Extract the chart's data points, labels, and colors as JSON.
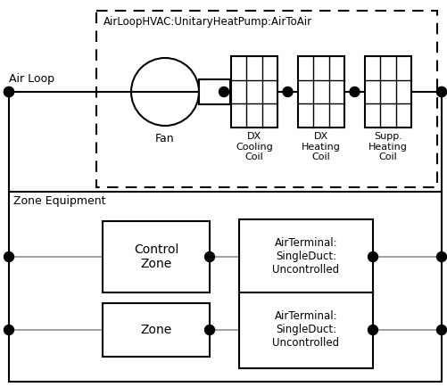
{
  "title": "AirLoopHVAC:UnitaryHeatPump:AirToAir",
  "bg_color": "#ffffff",
  "fig_width": 5.02,
  "fig_height": 4.34,
  "dpi": 100,
  "zone_equipment_label": "Zone Equipment",
  "air_loop_label": "Air Loop",
  "fan_label": "Fan",
  "coil1_label": "DX\nCooling\nCoil",
  "coil2_label": "DX\nHeating\nCoil",
  "coil3_label": "Supp.\nHeating\nCoil",
  "control_zone_label": "Control\nZone",
  "zone_label": "Zone",
  "terminal1_label": "AirTerminal:\nSingleDuct:\nUncontrolled",
  "terminal2_label": "AirTerminal:\nSingleDuct:\nUncontrolled",
  "dot_color": "#000000",
  "line_color": "#000000",
  "line_color_gray": "#888888",
  "box_edge_color": "#000000",
  "dashed_box_color": "#000000",
  "xlim": [
    0,
    502
  ],
  "ylim": [
    0,
    434
  ]
}
